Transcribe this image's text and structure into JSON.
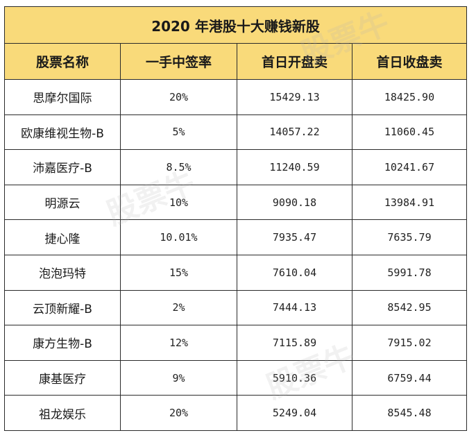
{
  "table": {
    "title": "2020 年港股十大赚钱新股",
    "headers": [
      "股票名称",
      "一手中签率",
      "首日开盘卖",
      "首日收盘卖"
    ],
    "rows": [
      [
        "思摩尔国际",
        "20%",
        "15429.13",
        "18425.90"
      ],
      [
        "欧康维视生物-B",
        "5%",
        "14057.22",
        "11060.45"
      ],
      [
        "沛嘉医疗-B",
        "8.5%",
        "11240.59",
        "10241.67"
      ],
      [
        "明源云",
        "10%",
        "9090.18",
        "13984.91"
      ],
      [
        "捷心隆",
        "10.01%",
        "7935.47",
        "7635.79"
      ],
      [
        "泡泡玛特",
        "15%",
        "7610.04",
        "5991.78"
      ],
      [
        "云顶新耀-B",
        "2%",
        "7444.13",
        "8542.95"
      ],
      [
        "康方生物-B",
        "12%",
        "7115.89",
        "7915.02"
      ],
      [
        "康基医疗",
        "9%",
        "5910.36",
        "6759.44"
      ],
      [
        "祖龙娱乐",
        "20%",
        "5249.04",
        "8545.48"
      ]
    ]
  },
  "watermark": "股票牛"
}
